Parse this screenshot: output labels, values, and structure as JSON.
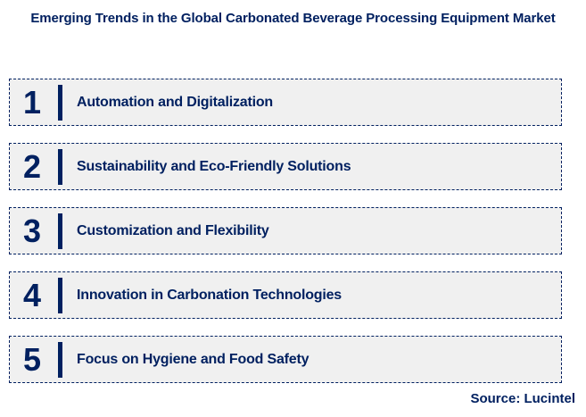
{
  "title": "Emerging Trends in the Global Carbonated Beverage Processing Equipment Market",
  "trends": [
    {
      "rank": "1",
      "label": "Automation and Digitalization"
    },
    {
      "rank": "2",
      "label": "Sustainability and Eco-Friendly Solutions"
    },
    {
      "rank": "3",
      "label": "Customization and Flexibility"
    },
    {
      "rank": "4",
      "label": "Innovation in Carbonation Technologies"
    },
    {
      "rank": "5",
      "label": "Focus on Hygiene and Food Safety"
    }
  ],
  "source": "Source: Lucintel",
  "colors": {
    "navy": "#002060",
    "box_background": "#f0f0f0",
    "box_border": "#002060",
    "page_background": "#ffffff"
  }
}
